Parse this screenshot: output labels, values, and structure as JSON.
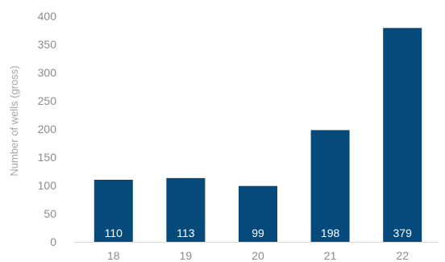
{
  "chart_data": {
    "type": "bar",
    "categories": [
      "18",
      "19",
      "20",
      "21",
      "22"
    ],
    "values": [
      110,
      113,
      99,
      198,
      379
    ],
    "data_labels": [
      "110",
      "113",
      "99",
      "198",
      "379"
    ],
    "ylabel": "Number of wells (gross)",
    "xlabel": "",
    "ylim": [
      0,
      400
    ],
    "yticks": [
      0,
      50,
      100,
      150,
      200,
      250,
      300,
      350,
      400
    ],
    "ytick_labels": [
      "0",
      "50",
      "100",
      "150",
      "200",
      "250",
      "300",
      "350",
      "400"
    ],
    "grid": false,
    "bar_color": "#064a7c",
    "axis_color": "#d9d9d9"
  }
}
